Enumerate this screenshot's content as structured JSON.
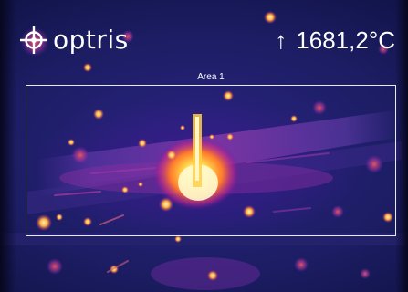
{
  "brand": {
    "logo_text": "optris"
  },
  "readout": {
    "arrow_icon": "up-arrow-icon",
    "max_temperature": "1681,2°C"
  },
  "measurement_area": {
    "label": "Area 1",
    "border_color": "#e9e9f2"
  },
  "colors": {
    "background": "#1c1d63",
    "hot": "#fff3a0",
    "warm": "#ff7a2a",
    "mid": "#c0278c",
    "text": "#ffffff"
  }
}
